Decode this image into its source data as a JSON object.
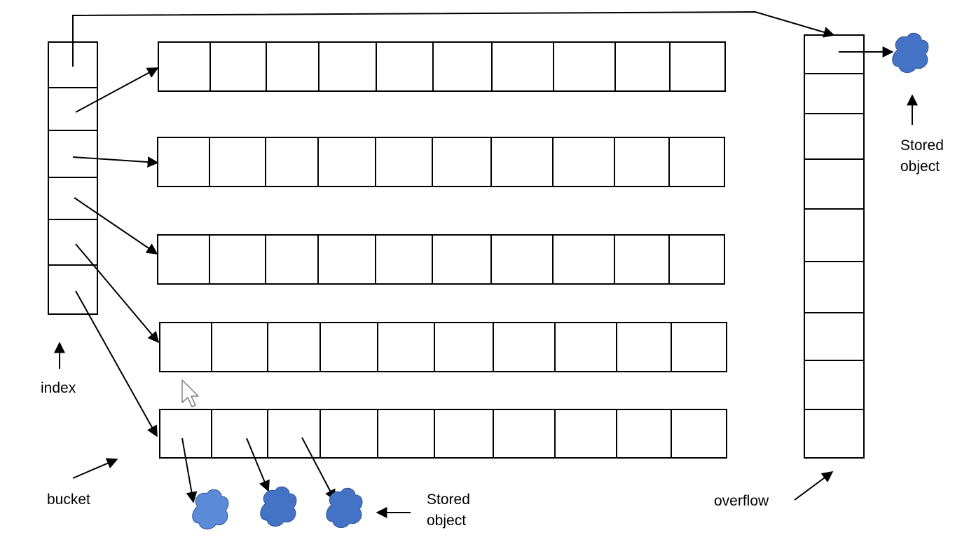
{
  "labels": {
    "index": "index",
    "bucket": "bucket",
    "overflow": "overflow",
    "stored_object_top_line1": "Stored",
    "stored_object_top_line2": "object",
    "stored_object_bottom_line1": "Stored",
    "stored_object_bottom_line2": "object"
  },
  "structure": {
    "index_slots": 6,
    "bucket_rows": 5,
    "cells_per_bucket": 10,
    "overflow_slots": 9,
    "stored_objects_bottom": 3,
    "stored_objects_top": 1
  },
  "colors": {
    "stored_object_fill": "#4472c4",
    "line": "#000000"
  }
}
